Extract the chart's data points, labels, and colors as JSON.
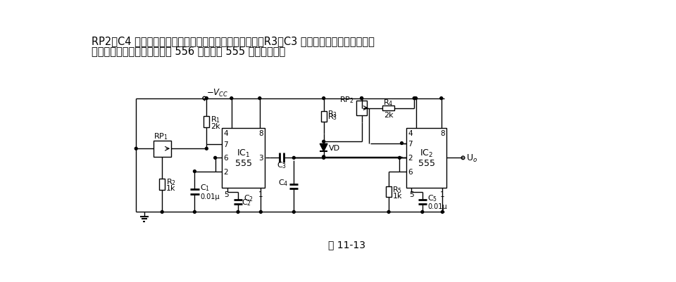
{
  "title": "图 11-13",
  "text_top_line1": "RP2、C4 分别根据脉冲频率和占空比的调节范围来选择；R3、C3 则根据输出脉冲的最小宽度",
  "text_top_line2": "来选择。也可以用双时基电路 556 代替两片 555 单时基电路。",
  "bg_color": "#ffffff",
  "line_color": "#000000",
  "font_size_text": 10.5,
  "font_size_label": 8,
  "font_size_caption": 10
}
